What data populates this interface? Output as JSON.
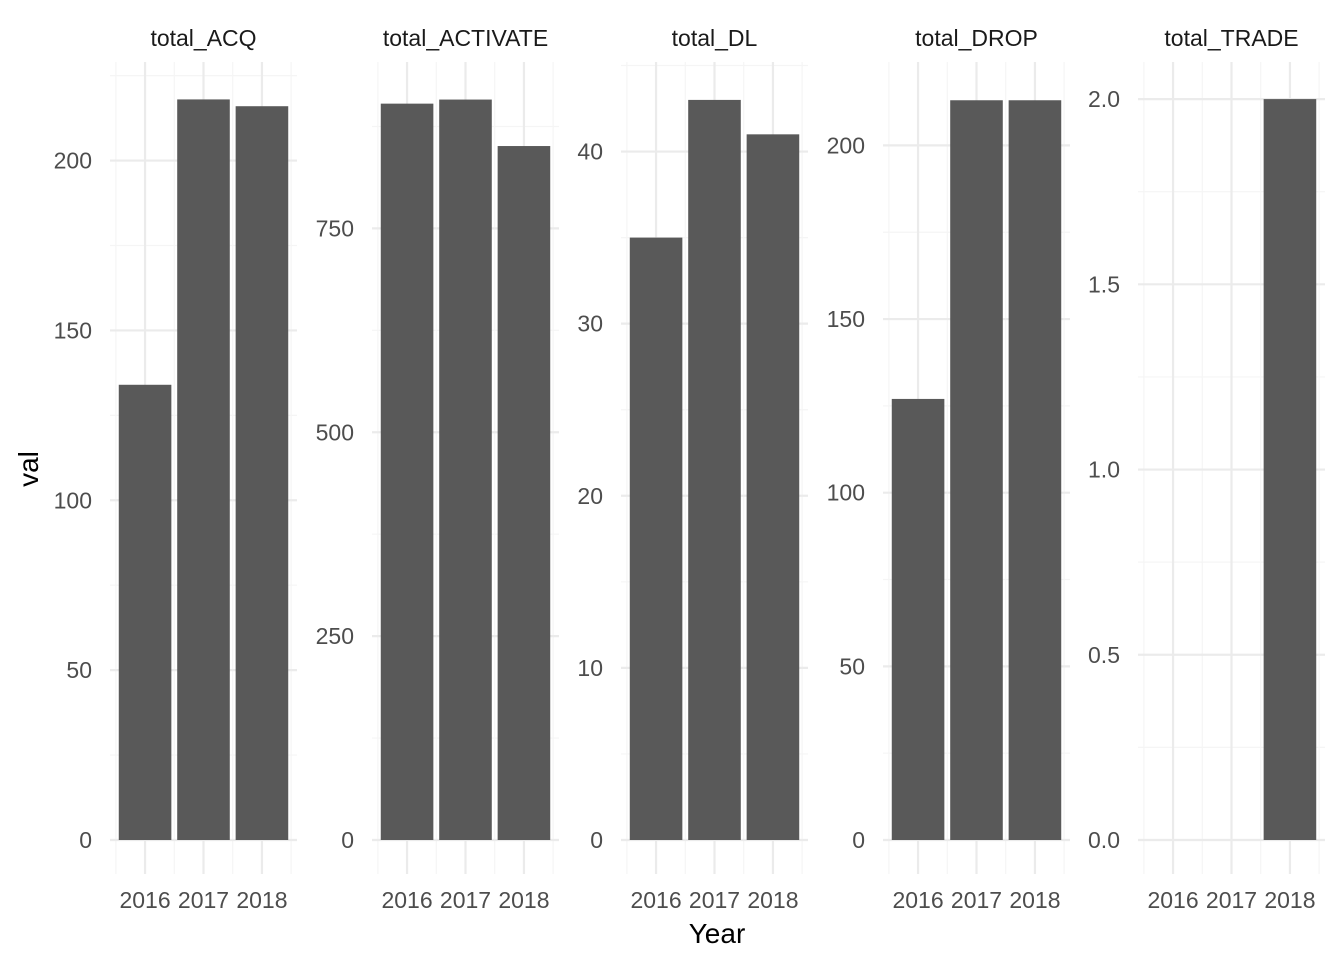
{
  "chart_data": {
    "type": "bar",
    "xlabel": "Year",
    "ylabel": "val",
    "categories": [
      "2016",
      "2017",
      "2018"
    ],
    "bar_color": "#595959",
    "grid_major_color": "#ebebeb",
    "grid_minor_color": "#f5f5f5",
    "panels": [
      {
        "title": "total_ACQ",
        "values": [
          134,
          218,
          216
        ],
        "ylim": [
          0,
          229
        ],
        "ticks": [
          0,
          50,
          100,
          150,
          200
        ],
        "tick_labels": [
          "0",
          "50",
          "100",
          "150",
          "200"
        ]
      },
      {
        "title": "total_ACTIVATE",
        "values": [
          903,
          908,
          851
        ],
        "ylim": [
          0,
          954
        ],
        "ticks": [
          0,
          250,
          500,
          750
        ],
        "tick_labels": [
          "0",
          "250",
          "500",
          "750"
        ]
      },
      {
        "title": "total_DL",
        "values": [
          35,
          43,
          41
        ],
        "ylim": [
          0,
          45.2
        ],
        "ticks": [
          0,
          10,
          20,
          30,
          40
        ],
        "tick_labels": [
          "0",
          "10",
          "20",
          "30",
          "40"
        ]
      },
      {
        "title": "total_DROP",
        "values": [
          127,
          213,
          213
        ],
        "ylim": [
          0,
          224
        ],
        "ticks": [
          0,
          50,
          100,
          150,
          200
        ],
        "tick_labels": [
          "0",
          "50",
          "100",
          "150",
          "200"
        ]
      },
      {
        "title": "total_TRADE",
        "values": [
          0,
          0,
          2
        ],
        "ylim": [
          0,
          2.1
        ],
        "ticks": [
          0,
          0.5,
          1,
          1.5,
          2
        ],
        "tick_labels": [
          "0.0",
          "0.5",
          "1.0",
          "1.5",
          "2.0"
        ]
      }
    ]
  }
}
